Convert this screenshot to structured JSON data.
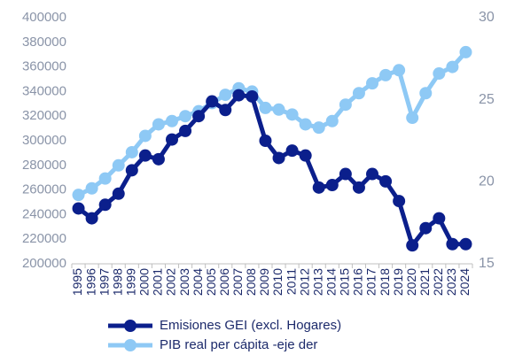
{
  "chart_data": {
    "type": "line",
    "categories": [
      "1995",
      "1996",
      "1997",
      "1998",
      "1999",
      "2000",
      "2001",
      "2002",
      "2003",
      "2004",
      "2005",
      "2006",
      "2007",
      "2008",
      "2009",
      "2010",
      "2011",
      "2012",
      "2013",
      "2014",
      "2015",
      "2016",
      "2017",
      "2018",
      "2019",
      "2020",
      "2021",
      "2022",
      "2023",
      "2024"
    ],
    "series": [
      {
        "name": "PIB real per cápita -eje der",
        "color": "#8ec9f5",
        "axis": "y2",
        "values": [
          19.2,
          19.6,
          20.2,
          21.0,
          21.8,
          22.8,
          23.5,
          23.7,
          24.0,
          24.3,
          24.8,
          25.3,
          25.7,
          25.5,
          24.5,
          24.4,
          24.1,
          23.5,
          23.3,
          23.7,
          24.7,
          25.4,
          26.0,
          26.5,
          26.8,
          23.9,
          25.4,
          26.6,
          27.0,
          27.9
        ]
      },
      {
        "name": "Emisiones GEI (excl. Hogares)",
        "color": "#0b1f8c",
        "values": [
          245000,
          237000,
          248000,
          257000,
          276000,
          288000,
          285000,
          301000,
          308000,
          320000,
          332000,
          325000,
          337000,
          336000,
          300000,
          286000,
          292000,
          288000,
          262000,
          264000,
          273000,
          262000,
          273000,
          267000,
          251000,
          215000,
          229000,
          237000,
          216000,
          216000
        ]
      }
    ],
    "ylim": [
      200000,
      400000
    ],
    "yticks": [
      200000,
      220000,
      240000,
      260000,
      280000,
      300000,
      320000,
      340000,
      360000,
      380000,
      400000
    ],
    "y2lim": [
      15,
      30
    ],
    "y2ticks": [
      15,
      20,
      25,
      30
    ],
    "grid": false
  }
}
